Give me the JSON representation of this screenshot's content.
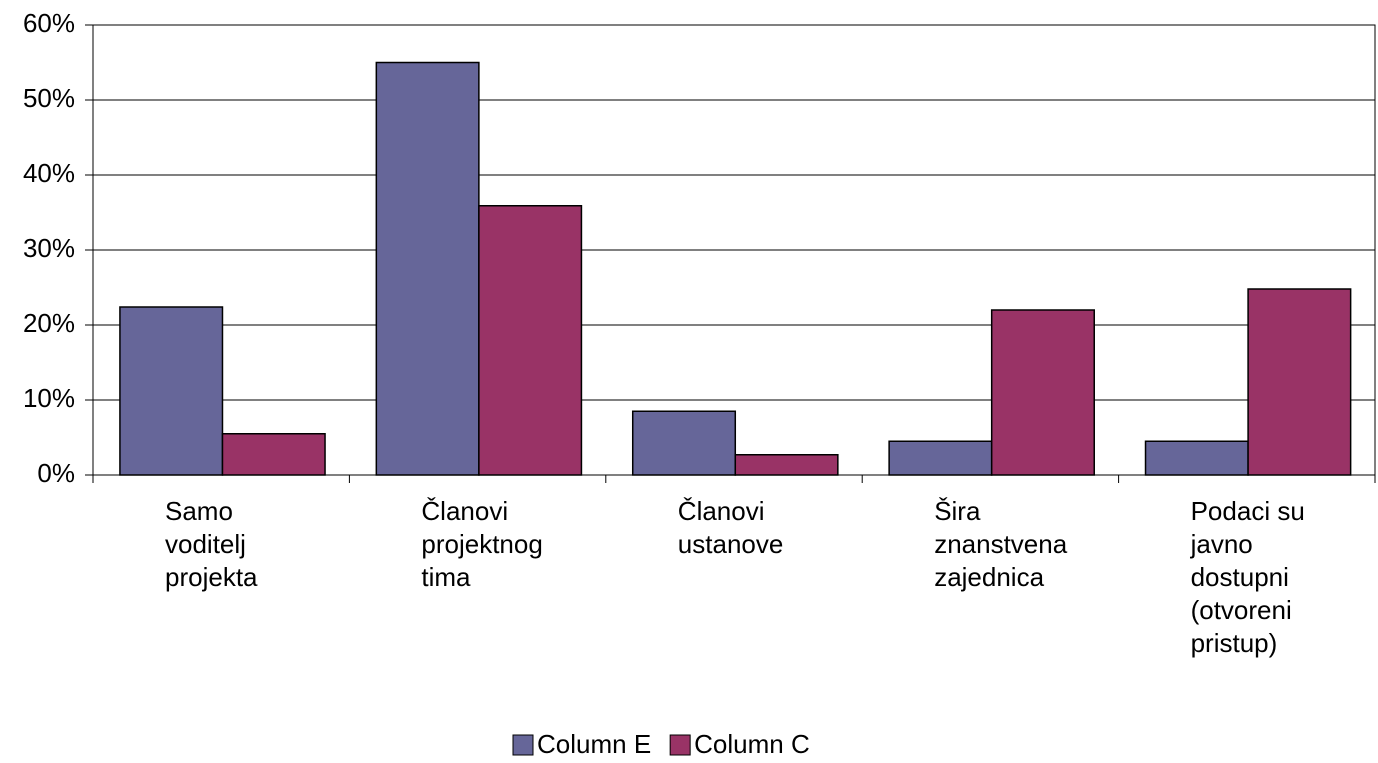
{
  "chart_data": {
    "type": "bar",
    "categories": [
      "Samo voditelj projekta",
      "Članovi projektnog tima",
      "Članovi ustanove",
      "Šira znanstvena zajednica",
      "Podaci su javno dostupni (otvoreni pristup)"
    ],
    "series": [
      {
        "name": "Column E",
        "color": "#666699",
        "values": [
          22.4,
          55,
          8.5,
          4.5,
          4.5
        ]
      },
      {
        "name": "Column C",
        "color": "#993366",
        "values": [
          5.5,
          35.9,
          2.7,
          22,
          24.8
        ]
      }
    ],
    "ylim": [
      0,
      60
    ],
    "yticks": [
      {
        "value": 0,
        "label": "0%"
      },
      {
        "value": 10,
        "label": "10%"
      },
      {
        "value": 20,
        "label": "20%"
      },
      {
        "value": 30,
        "label": "30%"
      },
      {
        "value": 40,
        "label": "40%"
      },
      {
        "value": 50,
        "label": "50%"
      },
      {
        "value": 60,
        "label": "60%"
      }
    ],
    "grid": true,
    "legend": "bottom"
  }
}
